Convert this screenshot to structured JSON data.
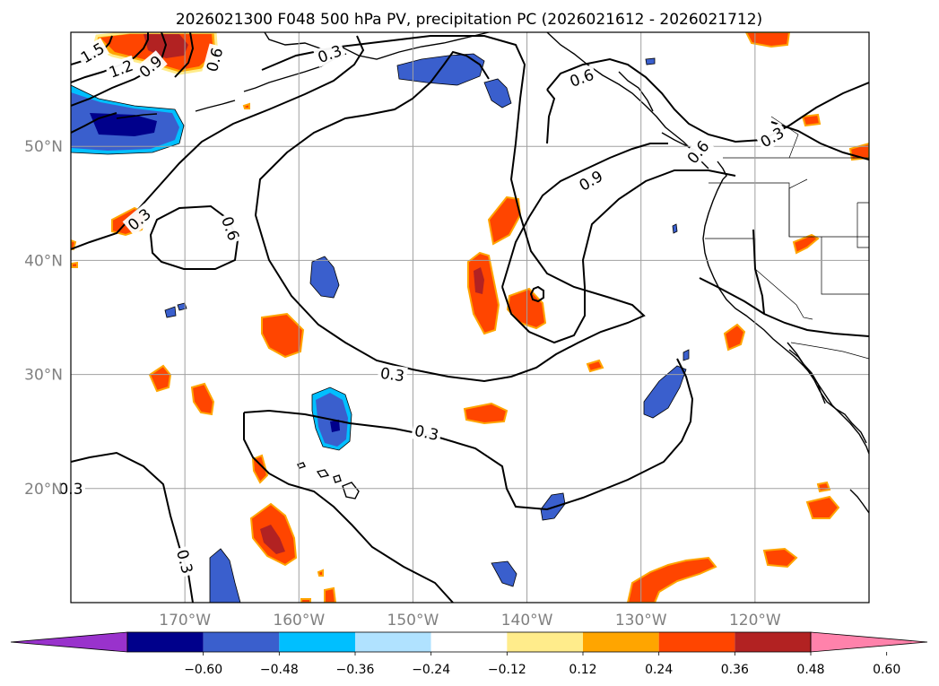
{
  "chart_data": {
    "type": "heatmap",
    "title": "2026021300 F048 500 hPa PV, precipitation PC (2026021612 - 2026021712)",
    "projection": "plate carree",
    "map_extent": {
      "lon": [
        -180,
        -110
      ],
      "lat": [
        10,
        60
      ]
    },
    "grid": true,
    "x_ticks": {
      "values": [
        -170,
        -160,
        -150,
        -140,
        -130,
        -120
      ],
      "labels": [
        "170°W",
        "160°W",
        "150°W",
        "140°W",
        "130°W",
        "120°W"
      ]
    },
    "y_ticks": {
      "values": [
        20,
        30,
        40,
        50
      ],
      "labels": [
        "20°N",
        "30°N",
        "40°N",
        "50°N"
      ]
    },
    "colorbar": {
      "orientation": "horizontal",
      "extend": "both",
      "levels": [
        -0.6,
        -0.48,
        -0.36,
        -0.24,
        -0.12,
        0.12,
        0.24,
        0.36,
        0.48,
        0.6
      ],
      "tick_labels": [
        "−0.60",
        "−0.48",
        "−0.36",
        "−0.24",
        "−0.12",
        "0.12",
        "0.24",
        "0.36",
        "0.48",
        "0.60"
      ],
      "colors": [
        "#9932cc",
        "#00008b",
        "#3a5fcd",
        "#00bfff",
        "#b0e2ff",
        "#ffffff",
        "#ffec8b",
        "#ffa500",
        "#ff4500",
        "#b22222",
        "#ff82ab"
      ]
    },
    "pv_contour_levels": [
      0.3,
      0.6,
      0.9,
      1.2,
      1.5
    ],
    "contour_labels": [
      {
        "text": "0.3",
        "lon": -151.8,
        "lat": 30.0,
        "rotate": 8
      },
      {
        "text": "0.3",
        "lon": -148.8,
        "lat": 24.9,
        "rotate": 12
      },
      {
        "text": "0.3",
        "lon": -180.0,
        "lat": 20.0,
        "rotate": 0
      },
      {
        "text": "0.3",
        "lon": -170.0,
        "lat": 13.6,
        "rotate": 75
      },
      {
        "text": "0.3",
        "lon": -174.0,
        "lat": 43.6,
        "rotate": -40
      },
      {
        "text": "0.3",
        "lon": -118.5,
        "lat": 50.8,
        "rotate": -30
      },
      {
        "text": "0.3",
        "lon": -157.3,
        "lat": 58.1,
        "rotate": -20
      },
      {
        "text": "0.6",
        "lon": -166.0,
        "lat": 42.8,
        "rotate": 70
      },
      {
        "text": "0.6",
        "lon": -125.0,
        "lat": 49.5,
        "rotate": -50
      },
      {
        "text": "0.6",
        "lon": -167.4,
        "lat": 57.6,
        "rotate": -75
      },
      {
        "text": "0.6",
        "lon": -135.2,
        "lat": 56.0,
        "rotate": -20
      },
      {
        "text": "0.9",
        "lon": -134.4,
        "lat": 47.0,
        "rotate": -30
      },
      {
        "text": "0.9",
        "lon": -173.0,
        "lat": 57.0,
        "rotate": -40
      },
      {
        "text": "1.2",
        "lon": -175.6,
        "lat": 56.8,
        "rotate": -20
      },
      {
        "text": "1.5",
        "lon": -178.1,
        "lat": 58.2,
        "rotate": -30
      }
    ]
  }
}
